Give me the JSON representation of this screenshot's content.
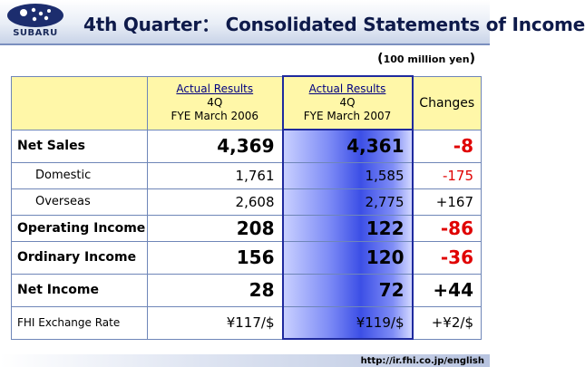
{
  "header": {
    "logo_text": "SUBARU",
    "title": "4th Quarter： Consolidated Statements of Income"
  },
  "unit": {
    "open": "(",
    "text": "100 million yen",
    "close": ")"
  },
  "table": {
    "columns": [
      {
        "line1": "Actual Results",
        "line2": "4Q",
        "line3": "FYE March 2006"
      },
      {
        "line1": "Actual Results",
        "line2": "4Q",
        "line3": "FYE March 2007"
      },
      {
        "label": "Changes"
      }
    ],
    "rows": [
      {
        "label": "Net Sales",
        "v2006": "4,369",
        "v2007": "4,361",
        "change": "-8"
      },
      {
        "label": "Domestic",
        "v2006": "1,761",
        "v2007": "1,585",
        "change": "-175"
      },
      {
        "label": "Overseas",
        "v2006": "2,608",
        "v2007": "2,775",
        "change": "+167"
      },
      {
        "label": "Operating Income",
        "v2006": "208",
        "v2007": "122",
        "change": "-86"
      },
      {
        "label": "Ordinary Income",
        "v2006": "156",
        "v2007": "120",
        "change": "-36"
      },
      {
        "label": "Net Income",
        "v2006": "28",
        "v2007": "72",
        "change": "+44"
      },
      {
        "label": "FHI Exchange Rate",
        "v2006": "¥117/$",
        "v2007": "¥119/$",
        "change": "+¥2/$"
      }
    ]
  },
  "colors": {
    "negative": "#e00000",
    "highlight_column": "#3c4fe6",
    "header_fill": "#fff7a8"
  },
  "footer": {
    "url": "http://ir.fhi.co.jp/english"
  }
}
